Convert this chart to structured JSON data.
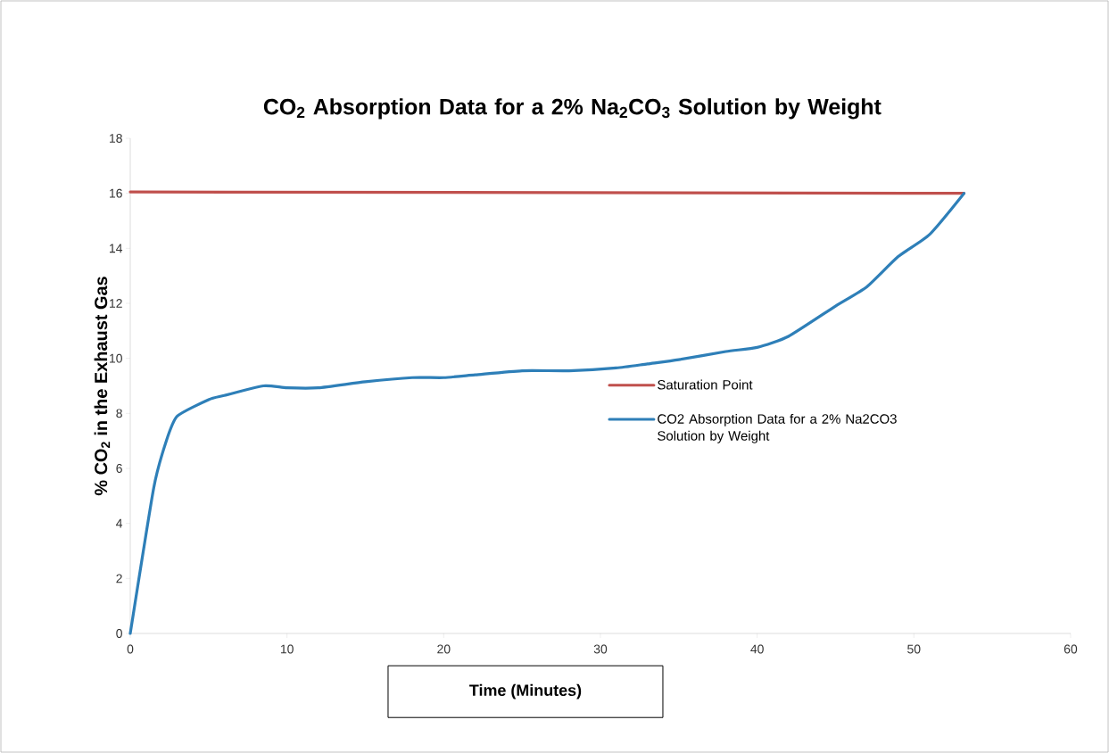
{
  "chart_data": {
    "type": "line",
    "title": "CO$_{2}$ Absorption Data for a 2% Na$_{2}$CO$_{3}$ Solution by Weight",
    "xlabel": "Time (Minutes)",
    "ylabel": "% CO$_{2}$ in the Exhaust Gas",
    "xlim": [
      0,
      60
    ],
    "ylim": [
      0,
      18
    ],
    "xticks": [
      0,
      10,
      20,
      30,
      40,
      50,
      60
    ],
    "yticks": [
      0,
      2,
      4,
      6,
      8,
      10,
      12,
      14,
      16,
      18
    ],
    "grid": false,
    "legend": "right",
    "marker": "none",
    "line_style": "solid",
    "series": [
      {
        "name": "Saturation Point",
        "color": "#c0504d",
        "x": [
          0,
          53.2
        ],
        "values": [
          16.05,
          16.0
        ]
      },
      {
        "name": "CO2 Absorption Data for a 2% Na2CO3 Solution by Weight",
        "color": "#2e7fb8",
        "x": [
          0,
          1.5,
          2.3,
          3,
          5,
          6,
          8.5,
          10,
          12,
          15,
          18,
          20,
          22,
          25,
          28,
          31,
          33,
          35,
          38,
          40,
          42,
          45,
          47,
          49,
          51,
          53.2
        ],
        "values": [
          0,
          5.3,
          7.0,
          7.9,
          8.5,
          8.65,
          9.0,
          8.93,
          8.93,
          9.15,
          9.3,
          9.3,
          9.4,
          9.55,
          9.55,
          9.65,
          9.8,
          9.95,
          10.25,
          10.4,
          10.8,
          11.9,
          12.6,
          13.7,
          14.5,
          16.0
        ]
      }
    ]
  }
}
